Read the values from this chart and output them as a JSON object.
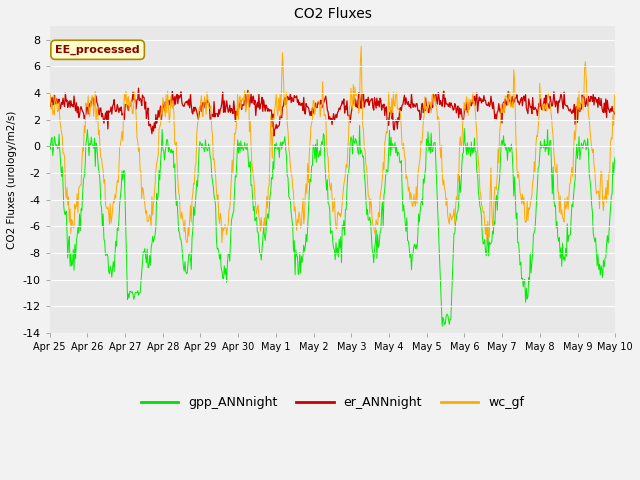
{
  "title": "CO2 Fluxes",
  "ylabel": "CO2 Fluxes (urology/m2/s)",
  "ylim": [
    -14,
    9
  ],
  "yticks": [
    -14,
    -12,
    -10,
    -8,
    -6,
    -4,
    -2,
    0,
    2,
    4,
    6,
    8
  ],
  "background_color": "#f2f2f2",
  "plot_bg_color": "#e8e8e8",
  "legend_labels": [
    "gpp_ANNnight",
    "er_ANNnight",
    "wc_gf"
  ],
  "legend_colors": [
    "#00dd00",
    "#cc0000",
    "#ffaa00"
  ],
  "annotation_text": "EE_processed",
  "annotation_color": "#880000",
  "annotation_bg": "#ffffcc",
  "n_points": 720,
  "seed": 42,
  "x_tick_labels": [
    "Apr 25",
    "Apr 26",
    "Apr 27",
    "Apr 28",
    "Apr 29",
    "Apr 30",
    "May 1",
    "May 2",
    "May 3",
    "May 4",
    "May 5",
    "May 6",
    "May 7",
    "May 8",
    "May 9",
    "May 10"
  ],
  "gpp_color": "#00ee00",
  "er_color": "#cc0000",
  "wc_color": "#ffaa00"
}
